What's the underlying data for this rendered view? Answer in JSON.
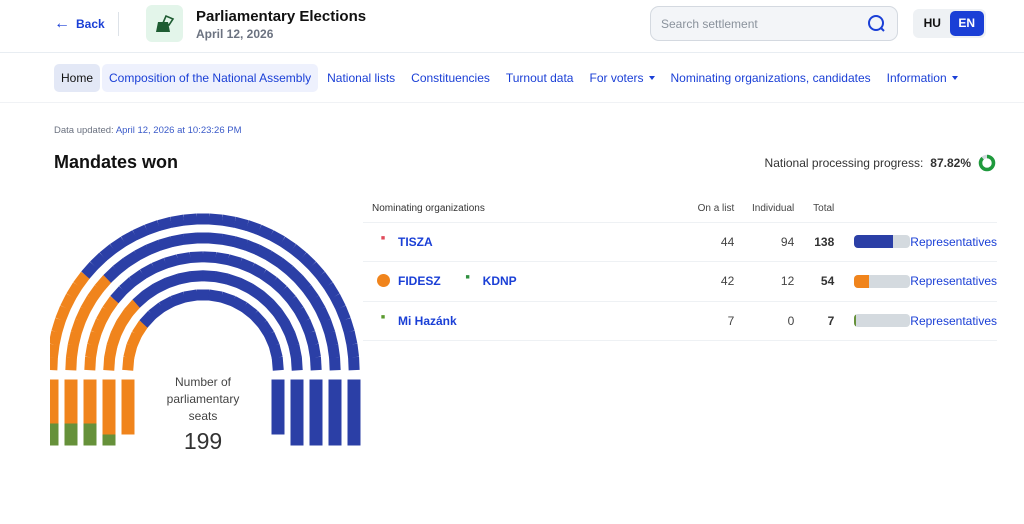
{
  "header": {
    "back": "Back",
    "title": "Parliamentary Elections",
    "date": "April 12, 2026",
    "search_placeholder": "Search settlement",
    "lang": [
      "HU",
      "EN"
    ]
  },
  "nav": [
    "Home",
    "Composition of the National Assembly",
    "National lists",
    "Constituencies",
    "Turnout data",
    "For voters",
    "Nominating organizations, candidates",
    "Information"
  ],
  "updated": {
    "label": "Data updated:",
    "value": "April 12, 2026 at 10:23:26 PM"
  },
  "main": {
    "title": "Mandates won",
    "progress_label": "National processing progress:",
    "progress_value": "87.82%",
    "progress": 87.82,
    "seats_label": "Number of parliamentary seats",
    "seats_total": "199"
  },
  "table": {
    "headers": [
      "Nominating organizations",
      "On a list",
      "Individual",
      "Total"
    ],
    "link": "Representatives",
    "rows": [
      {
        "orgs": [
          "TISZA"
        ],
        "list": "44",
        "individual": "94",
        "total": "138",
        "share": 0.693,
        "color": "#2b3fa6"
      },
      {
        "orgs": [
          "FIDESZ",
          "KDNP"
        ],
        "list": "42",
        "individual": "12",
        "total": "54",
        "share": 0.271,
        "color": "#f0841c"
      },
      {
        "orgs": [
          "Mi Hazánk"
        ],
        "list": "7",
        "individual": "0",
        "total": "7",
        "share": 0.035,
        "color": "#66913a"
      }
    ]
  },
  "chart_data": {
    "type": "parliament",
    "total": 199,
    "series": [
      {
        "name": "Mi Hazánk",
        "value": 7,
        "color": "#66913a"
      },
      {
        "name": "FIDESZ-KDNP",
        "value": 54,
        "color": "#f0841c"
      },
      {
        "name": "TISZA",
        "value": 138,
        "color": "#2b3fa6"
      }
    ]
  }
}
